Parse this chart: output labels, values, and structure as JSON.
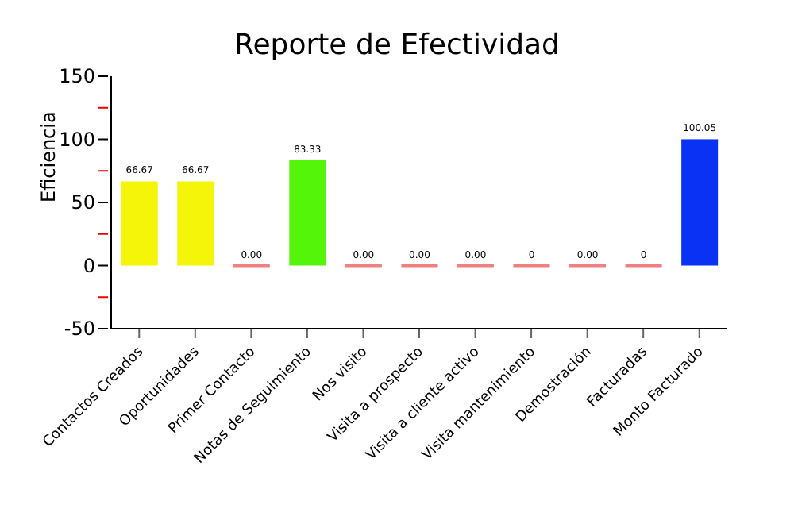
{
  "chart_data": {
    "type": "bar",
    "title": "Reporte de Efectividad",
    "ylabel": "Eficiencia",
    "categories": [
      "Contactos Creados",
      "Oportunidades",
      "Primer Contacto",
      "Notas de Seguimiento",
      "Nos visito",
      "Visita a prospecto",
      "Visita a cliente activo",
      "Visita mantenimiento",
      "Demostración",
      "Facturadas",
      "Monto Facturado"
    ],
    "values": [
      66.67,
      66.67,
      0,
      83.33,
      0,
      0,
      0,
      0,
      0,
      0,
      100.05
    ],
    "value_labels": [
      "66.67",
      "66.67",
      "0.00",
      "83.33",
      "0.00",
      "0.00",
      "0.00",
      "0",
      "0.00",
      "0",
      "100.05"
    ],
    "colors": [
      "#f5f50a",
      "#f5f50a",
      "#f08080",
      "#55f50a",
      "#f08080",
      "#f08080",
      "#f08080",
      "#f08080",
      "#f08080",
      "#f08080",
      "#0a32f5"
    ],
    "ylim": [
      -50,
      150
    ],
    "yticks": [
      -50,
      {
        "value": -25,
        "label": null
      },
      0,
      {
        "value": 25,
        "label": null
      },
      50,
      {
        "value": 75,
        "label": null
      },
      100,
      {
        "value": 125,
        "label": null
      },
      150
    ],
    "orientation": "vertical"
  }
}
